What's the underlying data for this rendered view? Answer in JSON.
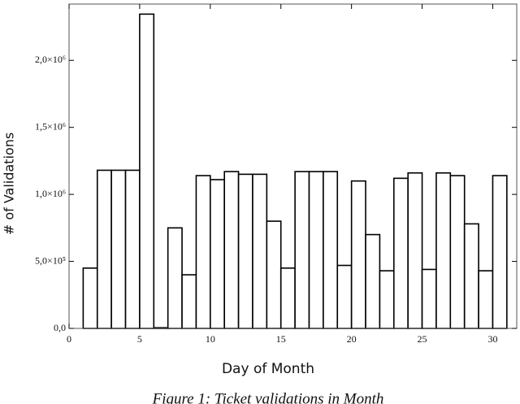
{
  "chart_data": {
    "type": "histogram",
    "x_label": "Day of Month",
    "y_label": "# of Validations",
    "caption": "Figure 1: Ticket validations in Month",
    "bins": [
      1,
      2,
      3,
      4,
      5,
      6,
      7,
      8,
      9,
      10,
      11,
      12,
      13,
      14,
      15,
      16,
      17,
      18,
      19,
      20,
      21,
      22,
      23,
      24,
      25,
      26,
      27,
      28,
      29,
      30,
      31
    ],
    "values": [
      450000,
      1180000,
      1180000,
      1180000,
      2345000,
      5000,
      750000,
      400000,
      1140000,
      1110000,
      1170000,
      1150000,
      1150000,
      800000,
      450000,
      1170000,
      1170000,
      1170000,
      470000,
      1100000,
      700000,
      430000,
      1120000,
      1160000,
      440000,
      1160000,
      1140000,
      780000,
      430000,
      1140000
    ],
    "color": "#ffffff",
    "xlim": [
      0,
      31.7
    ],
    "xticks": [
      0,
      5,
      10,
      15,
      20,
      25,
      30
    ],
    "ylim": [
      0,
      2420000
    ],
    "yticks": [
      {
        "value": 0,
        "label": "0,0"
      },
      {
        "value": 500000,
        "label": "5,0×10⁵"
      },
      {
        "value": 1000000,
        "label": "1,0×10⁶"
      },
      {
        "value": 1500000,
        "label": "1,5×10⁶"
      },
      {
        "value": 2000000,
        "label": "2,0×10⁶"
      }
    ]
  }
}
